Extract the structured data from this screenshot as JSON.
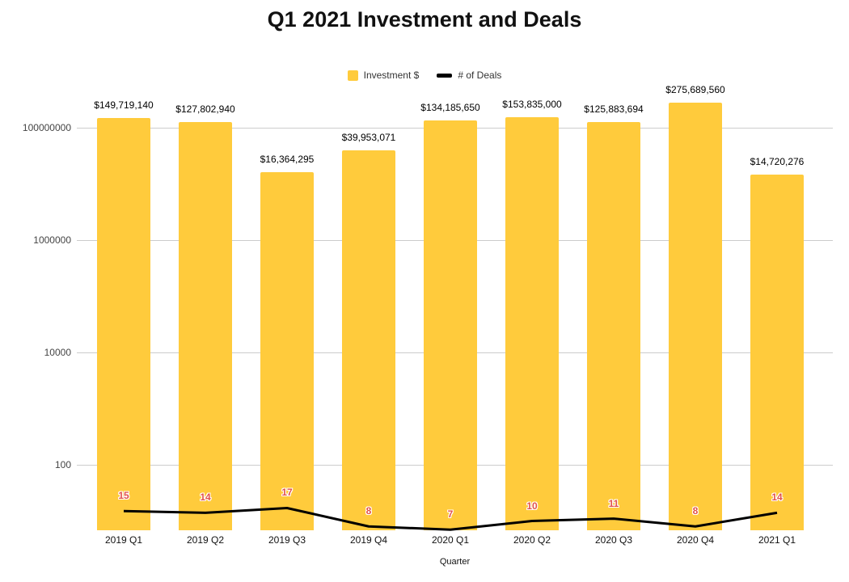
{
  "title": "Q1 2021 Investment and Deals",
  "legend": {
    "items": [
      {
        "label": "Investment $",
        "swatch": "yellow-square-icon",
        "color": "#FFCB3C"
      },
      {
        "label": "# of Deals",
        "swatch": "black-line-icon",
        "color": "#000000"
      }
    ]
  },
  "axis": {
    "x_title": "Quarter"
  },
  "colors": {
    "bar": "#FFCB3C",
    "line": "#000000",
    "annotation": "#E2524B",
    "grid": "#CCCCCC"
  },
  "chart_data": {
    "type": "bar",
    "title": "Q1 2021 Investment and Deals",
    "xlabel": "Quarter",
    "ylabel": "",
    "yscale": "log",
    "grid": true,
    "legend_position": "top",
    "categories": [
      "2019 Q1",
      "2019 Q2",
      "2019 Q3",
      "2019 Q4",
      "2020 Q1",
      "2020 Q2",
      "2020 Q3",
      "2020 Q4",
      "2021 Q1"
    ],
    "yticks": [
      {
        "value": 100000000,
        "label": "100000000"
      },
      {
        "value": 1000000,
        "label": "1000000"
      },
      {
        "value": 10000,
        "label": "10000"
      },
      {
        "value": 100,
        "label": "100"
      }
    ],
    "series": [
      {
        "name": "Investment $",
        "type": "bar",
        "color": "#FFCB3C",
        "values": [
          149719140,
          127802940,
          16364295,
          39953071,
          134185650,
          153835000,
          125883694,
          275689560,
          14720276
        ],
        "value_labels": [
          "$149,719,140",
          "$127,802,940",
          "$16,364,295",
          "$39,953,071",
          "$134,185,650",
          "$153,835,000",
          "$125,883,694",
          "$275,689,560",
          "$14,720,276"
        ]
      },
      {
        "name": "# of Deals",
        "type": "line",
        "color": "#000000",
        "label_color": "#E2524B",
        "values": [
          15,
          14,
          17,
          8,
          7,
          10,
          11,
          8,
          14
        ]
      }
    ]
  }
}
